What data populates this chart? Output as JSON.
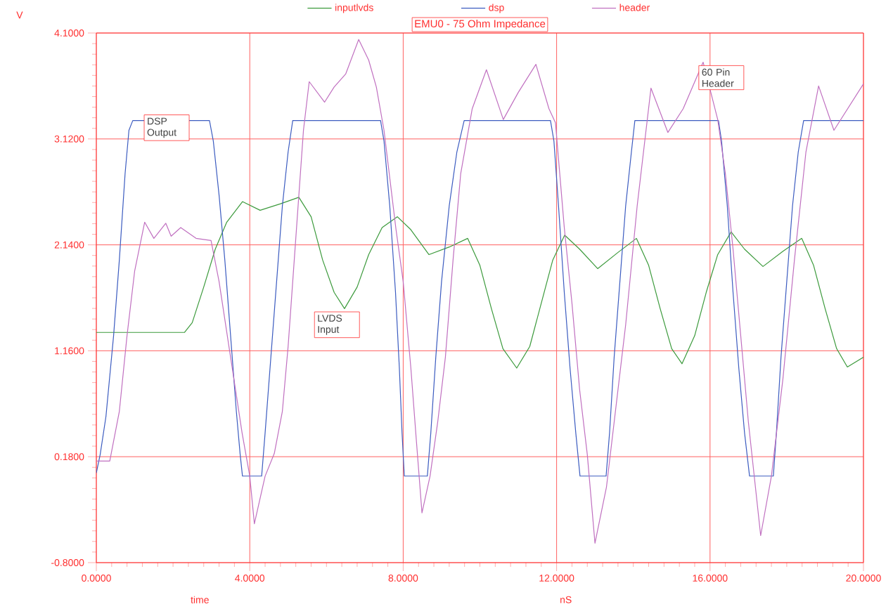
{
  "chart_data": {
    "type": "line",
    "title": "EMU0 - 75 Ohm Impedance",
    "xlabel": "time",
    "ylabel": "V",
    "annotations": [
      "DSP Output",
      "LVDS Input",
      "60 Pin Header",
      "nS"
    ],
    "xlim": [
      0,
      20
    ],
    "ylim": [
      -0.8,
      4.1
    ],
    "xticks": [
      {
        "value": 0,
        "label": "0.0000"
      },
      {
        "value": 4,
        "label": "4.0000"
      },
      {
        "value": 8,
        "label": "8.0000"
      },
      {
        "value": 12,
        "label": "12.0000"
      },
      {
        "value": 16,
        "label": "16.0000"
      },
      {
        "value": 20,
        "label": "20.0000"
      }
    ],
    "yticks": [
      {
        "value": -0.8,
        "label": "-0.8000"
      },
      {
        "value": 0.18,
        "label": "0.1800"
      },
      {
        "value": 1.16,
        "label": "1.1600"
      },
      {
        "value": 2.14,
        "label": "2.1400"
      },
      {
        "value": 3.12,
        "label": "3.1200"
      },
      {
        "value": 4.1,
        "label": "4.1000"
      }
    ],
    "grid": true,
    "legend": "top",
    "marker": "none",
    "line_style": "solid",
    "series": [
      {
        "name": "inputlvds",
        "color": "#3c9a3c",
        "x": [
          0,
          2.3,
          2.5,
          2.8,
          3.1,
          3.4,
          3.81,
          4.27,
          4.8,
          5.28,
          5.6,
          5.9,
          6.2,
          6.47,
          6.8,
          7.1,
          7.45,
          7.85,
          8.2,
          8.67,
          9.2,
          9.68,
          10.0,
          10.3,
          10.6,
          10.96,
          11.3,
          11.6,
          11.9,
          12.21,
          12.6,
          13.07,
          13.6,
          14.08,
          14.4,
          14.7,
          15.0,
          15.27,
          15.6,
          15.9,
          16.2,
          16.55,
          16.9,
          17.38,
          17.9,
          18.39,
          18.7,
          19.0,
          19.3,
          19.58,
          20
        ],
        "values": [
          1.33,
          1.33,
          1.42,
          1.75,
          2.1,
          2.35,
          2.54,
          2.46,
          2.52,
          2.58,
          2.4,
          2.0,
          1.7,
          1.55,
          1.75,
          2.05,
          2.3,
          2.4,
          2.28,
          2.05,
          2.12,
          2.2,
          1.95,
          1.55,
          1.18,
          1.0,
          1.2,
          1.6,
          2.0,
          2.23,
          2.1,
          1.92,
          2.07,
          2.2,
          1.95,
          1.55,
          1.18,
          1.04,
          1.3,
          1.7,
          2.05,
          2.26,
          2.1,
          1.94,
          2.08,
          2.2,
          1.95,
          1.55,
          1.18,
          1.01,
          1.1
        ]
      },
      {
        "name": "dsp",
        "color": "#3c5cc0",
        "x": [
          0,
          0.1,
          0.25,
          0.45,
          0.6,
          0.75,
          0.85,
          0.95,
          2.95,
          3.05,
          3.2,
          3.35,
          3.5,
          3.65,
          3.75,
          3.81,
          4.31,
          4.4,
          4.55,
          4.7,
          4.85,
          5.0,
          5.12,
          7.41,
          7.5,
          7.65,
          7.8,
          7.9,
          7.97,
          8.03,
          8.63,
          8.72,
          8.85,
          9.0,
          9.2,
          9.4,
          9.59,
          11.84,
          11.93,
          12.05,
          12.2,
          12.35,
          12.5,
          12.61,
          13.29,
          13.38,
          13.5,
          13.65,
          13.8,
          13.95,
          14.04,
          16.22,
          16.3,
          16.45,
          16.6,
          16.75,
          16.9,
          17.03,
          17.65,
          17.73,
          17.85,
          18.0,
          18.15,
          18.3,
          18.44,
          20
        ],
        "values": [
          0.03,
          0.2,
          0.55,
          1.3,
          2.0,
          2.8,
          3.2,
          3.29,
          3.29,
          3.1,
          2.6,
          2.0,
          1.3,
          0.6,
          0.2,
          0.0,
          0.0,
          0.4,
          1.1,
          1.8,
          2.5,
          3.0,
          3.29,
          3.29,
          3.1,
          2.5,
          1.7,
          1.0,
          0.4,
          0.0,
          0.0,
          0.4,
          1.1,
          1.8,
          2.5,
          3.0,
          3.29,
          3.29,
          3.1,
          2.5,
          1.7,
          1.0,
          0.4,
          0.0,
          0.0,
          0.4,
          1.1,
          1.8,
          2.5,
          3.0,
          3.29,
          3.29,
          3.1,
          2.5,
          1.7,
          1.0,
          0.4,
          0.0,
          0.0,
          0.4,
          1.1,
          1.8,
          2.5,
          3.0,
          3.29,
          3.29
        ]
      },
      {
        "name": "header",
        "color": "#c070c0",
        "x": [
          0,
          0.35,
          0.6,
          0.8,
          1.0,
          1.26,
          1.5,
          1.81,
          1.95,
          2.2,
          2.6,
          2.99,
          3.2,
          3.5,
          3.8,
          4.0,
          4.12,
          4.4,
          4.64,
          4.85,
          5.0,
          5.2,
          5.4,
          5.55,
          5.95,
          6.2,
          6.5,
          6.84,
          7.1,
          7.3,
          7.5,
          7.81,
          8.0,
          8.2,
          8.35,
          8.49,
          8.7,
          8.9,
          9.1,
          9.3,
          9.5,
          9.8,
          10.17,
          10.61,
          11.0,
          11.46,
          11.8,
          11.97,
          12.2,
          12.4,
          12.6,
          12.8,
          13.0,
          13.3,
          13.5,
          13.8,
          14.1,
          14.46,
          14.9,
          15.3,
          15.82,
          16.2,
          16.4,
          16.6,
          16.8,
          17.0,
          17.32,
          17.6,
          17.9,
          18.2,
          18.5,
          18.83,
          19.23,
          20
        ],
        "values": [
          0.14,
          0.14,
          0.6,
          1.3,
          1.9,
          2.35,
          2.2,
          2.34,
          2.22,
          2.3,
          2.2,
          2.18,
          1.8,
          1.1,
          0.4,
          0.0,
          -0.44,
          0.0,
          0.21,
          0.6,
          1.2,
          2.2,
          3.2,
          3.65,
          3.46,
          3.6,
          3.72,
          4.04,
          3.85,
          3.6,
          3.2,
          2.29,
          1.8,
          1.0,
          0.3,
          -0.34,
          0.0,
          0.5,
          1.1,
          2.0,
          2.8,
          3.4,
          3.76,
          3.3,
          3.55,
          3.81,
          3.4,
          3.27,
          2.3,
          1.6,
          0.8,
          0.2,
          -0.62,
          -0.1,
          0.5,
          1.4,
          2.5,
          3.59,
          3.18,
          3.4,
          3.83,
          3.3,
          2.8,
          2.1,
          1.3,
          0.5,
          -0.55,
          0.0,
          0.9,
          2.0,
          3.0,
          3.61,
          3.2,
          3.63
        ]
      }
    ]
  }
}
